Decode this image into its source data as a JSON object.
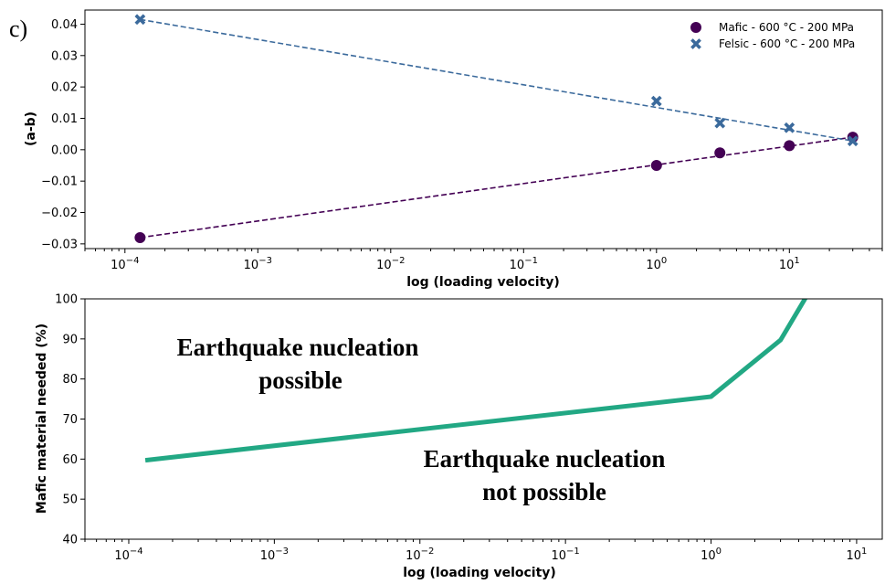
{
  "chart_data": [
    {
      "type": "scatter",
      "panel_label": "c)",
      "xlabel": "log (loading velocity)",
      "ylabel": "(a-b)",
      "xscale": "log",
      "xlim": [
        5e-05,
        50
      ],
      "ylim": [
        -0.0315,
        0.0445
      ],
      "x_tick_labels": [
        {
          "base": "10",
          "exp": "−4"
        },
        {
          "base": "10",
          "exp": "−3"
        },
        {
          "base": "10",
          "exp": "−2"
        },
        {
          "base": "10",
          "exp": "−1"
        },
        {
          "base": "10",
          "exp": "0"
        },
        {
          "base": "10",
          "exp": "1"
        }
      ],
      "y_tick_labels": [
        "−0.03",
        "−0.02",
        "−0.01",
        "0.00",
        "0.01",
        "0.02",
        "0.03",
        "0.04"
      ],
      "legend_position": "top-right",
      "grid": false,
      "series": [
        {
          "name": "Mafic - 600 °C - 200 MPa",
          "marker": "circle",
          "color": "#440154",
          "trendline": "dashed",
          "x": [
            0.00013,
            1,
            3,
            10,
            30
          ],
          "y": [
            -0.028,
            -0.005,
            -0.001,
            0.0013,
            0.004
          ]
        },
        {
          "name": "Felsic - 600 °C - 200 MPa",
          "marker": "x",
          "color": "#3b6a9c",
          "trendline": "dashed",
          "x": [
            0.00013,
            1,
            3,
            10,
            30
          ],
          "y": [
            0.0415,
            0.0155,
            0.0085,
            0.007,
            0.0028
          ]
        }
      ]
    },
    {
      "type": "line",
      "xlabel": "log (loading velocity)",
      "ylabel": "Mafic material needed (%)",
      "xscale": "log",
      "xlim": [
        5e-05,
        15
      ],
      "ylim": [
        40,
        100
      ],
      "x_tick_labels": [
        {
          "base": "10",
          "exp": "−4"
        },
        {
          "base": "10",
          "exp": "−3"
        },
        {
          "base": "10",
          "exp": "−2"
        },
        {
          "base": "10",
          "exp": "−1"
        },
        {
          "base": "10",
          "exp": "0"
        },
        {
          "base": "10",
          "exp": "1"
        }
      ],
      "y_tick_labels": [
        "40",
        "50",
        "60",
        "70",
        "80",
        "90",
        "100"
      ],
      "grid": false,
      "series": [
        {
          "color": "#22a884",
          "x": [
            0.00013,
            1,
            3,
            4.5
          ],
          "y": [
            59.7,
            75.6,
            89.7,
            100.5
          ]
        }
      ],
      "annotations": [
        {
          "lines": [
            "Earthquake nucleation",
            "possible"
          ]
        },
        {
          "lines": [
            "Earthquake nucleation",
            "not possible"
          ]
        }
      ]
    }
  ]
}
